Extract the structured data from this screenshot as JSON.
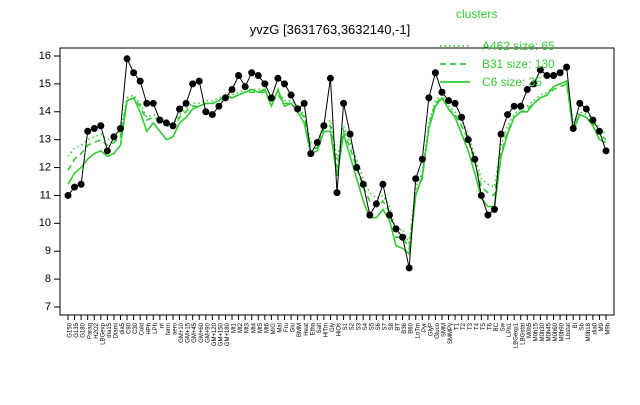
{
  "chart_data": {
    "type": "line",
    "title": "yvzG [3631763,3632140,-1]",
    "xlabel": "",
    "ylabel": "",
    "ylim": [
      7,
      16
    ],
    "yticks": [
      7,
      8,
      9,
      10,
      11,
      12,
      13,
      14,
      15,
      16
    ],
    "grid": false,
    "legend_position": "top-right",
    "legend_title": "clusters",
    "categories": [
      "G150",
      "G135",
      "G180",
      "Paraq",
      "H2O2",
      "LBGexp",
      "dia15",
      "Diami",
      "dia5",
      "C90",
      "C30",
      "Cold",
      "HPh",
      "LPh",
      "nt",
      "ferm",
      "aero",
      "GM+10",
      "GM+15",
      "GM+45",
      "GM+60",
      "GM+90",
      "GM+120",
      "GM+150",
      "GM+180",
      "Mt1",
      "Mt2",
      "Mt3",
      "Mt4",
      "Mt5",
      "Mt6",
      "M/G",
      "Mal",
      "Fru",
      "Glu",
      "BMM",
      "Heat",
      "Etha",
      "Salt",
      "HiTm",
      "Gly",
      "HiOs",
      "S1",
      "S2",
      "S3",
      "S4",
      "S5",
      "S6",
      "S7",
      "S8",
      "BT",
      "B36",
      "B60",
      "LoTm",
      "Pyr",
      "GlyP",
      "Gluco",
      "SMM",
      "SMMPy",
      "T1",
      "T2",
      "T3",
      "T4",
      "T5",
      "T6",
      "BC",
      "Sw",
      "LPh1",
      "LBGexp1",
      "LBGstat",
      "M0h5",
      "M0h15",
      "M0h30",
      "M0h45",
      "M0h60",
      "M0h90",
      "Lbstat",
      "Bl",
      "Sb",
      "M0h18",
      "dia0",
      "M9",
      "M9b"
    ],
    "series": [
      {
        "name": "A462 size: 65",
        "style": "dotted",
        "color": "#33cc33",
        "values": [
          12.4,
          12.7,
          12.8,
          13.0,
          13.1,
          13.2,
          13.0,
          13.1,
          13.3,
          14.5,
          14.6,
          14.3,
          13.8,
          13.9,
          13.8,
          13.6,
          13.5,
          13.9,
          14.1,
          14.3,
          14.3,
          14.4,
          14.4,
          14.5,
          14.6,
          14.6,
          14.7,
          14.8,
          14.8,
          14.8,
          14.8,
          14.4,
          14.7,
          14.4,
          14.4,
          14.2,
          13.9,
          12.9,
          12.9,
          13.5,
          13.7,
          12.3,
          13.5,
          12.9,
          12.3,
          11.6,
          11.1,
          10.9,
          11.0,
          10.6,
          9.7,
          9.8,
          9.3,
          11.3,
          11.8,
          13.6,
          14.4,
          14.6,
          14.2,
          14.0,
          13.7,
          13.2,
          12.4,
          11.6,
          11.4,
          11.3,
          12.8,
          13.5,
          13.9,
          14.1,
          14.2,
          14.4,
          14.6,
          14.7,
          14.9,
          15.0,
          15.1,
          13.6,
          14.0,
          13.9,
          13.8,
          13.4,
          13.2
        ]
      },
      {
        "name": "B31 size: 130",
        "style": "dashed",
        "color": "#33cc33",
        "values": [
          11.9,
          12.3,
          12.5,
          12.8,
          12.9,
          13.0,
          12.8,
          12.9,
          13.1,
          14.4,
          14.5,
          14.2,
          13.7,
          13.8,
          13.7,
          13.5,
          13.4,
          13.8,
          14.0,
          14.2,
          14.2,
          14.3,
          14.3,
          14.4,
          14.5,
          14.5,
          14.6,
          14.7,
          14.7,
          14.7,
          14.7,
          14.3,
          14.6,
          14.3,
          14.3,
          14.1,
          13.8,
          12.7,
          12.7,
          13.4,
          13.5,
          12.0,
          13.3,
          12.7,
          12.0,
          11.3,
          10.8,
          10.6,
          10.8,
          10.4,
          9.5,
          9.5,
          9.1,
          11.1,
          11.6,
          13.5,
          14.3,
          14.5,
          14.1,
          13.9,
          13.5,
          13.0,
          12.2,
          11.3,
          11.1,
          11.0,
          12.5,
          13.3,
          13.8,
          14.0,
          14.1,
          14.3,
          14.5,
          14.6,
          14.8,
          14.9,
          15.0,
          13.4,
          13.9,
          13.8,
          13.6,
          13.2,
          13.0
        ]
      },
      {
        "name": "C6 size: 35",
        "style": "solid",
        "color": "#33cc33",
        "values": [
          11.4,
          11.8,
          12.0,
          12.3,
          12.5,
          12.6,
          12.4,
          12.5,
          12.8,
          14.4,
          14.5,
          14.0,
          13.3,
          13.6,
          13.3,
          13.0,
          13.1,
          13.6,
          13.8,
          14.1,
          14.2,
          14.3,
          14.3,
          14.4,
          14.6,
          14.5,
          14.6,
          14.7,
          14.8,
          14.7,
          14.8,
          14.2,
          14.8,
          14.2,
          14.3,
          14.0,
          13.6,
          12.5,
          12.6,
          13.3,
          13.3,
          11.7,
          13.2,
          12.4,
          11.6,
          10.8,
          10.2,
          10.2,
          10.5,
          10.1,
          9.2,
          9.1,
          8.9,
          11.0,
          11.7,
          13.4,
          14.2,
          14.5,
          14.1,
          13.8,
          13.2,
          12.6,
          11.8,
          10.9,
          10.6,
          10.6,
          12.4,
          13.2,
          13.8,
          14.0,
          14.0,
          14.3,
          14.5,
          14.6,
          14.9,
          15.0,
          15.1,
          13.3,
          13.9,
          13.8,
          13.5,
          13.0,
          12.9
        ]
      },
      {
        "name": "yvzG",
        "style": "points",
        "color": "#000000",
        "values": [
          11.0,
          11.3,
          11.4,
          13.3,
          13.4,
          13.5,
          12.6,
          13.1,
          13.4,
          15.9,
          15.4,
          15.1,
          14.3,
          14.3,
          13.7,
          13.6,
          13.5,
          14.1,
          14.3,
          15.0,
          15.1,
          14.0,
          13.9,
          14.2,
          14.5,
          14.8,
          15.3,
          14.9,
          15.4,
          15.3,
          15.0,
          14.5,
          15.2,
          15.0,
          14.6,
          14.1,
          14.3,
          12.5,
          12.9,
          13.5,
          15.2,
          11.1,
          14.3,
          13.2,
          12.0,
          11.4,
          10.3,
          10.7,
          11.4,
          10.3,
          9.8,
          9.5,
          8.4,
          11.6,
          12.3,
          14.5,
          15.4,
          14.7,
          14.4,
          14.3,
          13.8,
          13.0,
          12.3,
          11.0,
          10.3,
          10.5,
          13.2,
          13.9,
          14.2,
          14.2,
          14.8,
          15.0,
          15.5,
          15.3,
          15.3,
          15.4,
          15.6,
          13.4,
          14.3,
          14.1,
          13.7,
          13.3,
          12.6
        ]
      }
    ]
  }
}
